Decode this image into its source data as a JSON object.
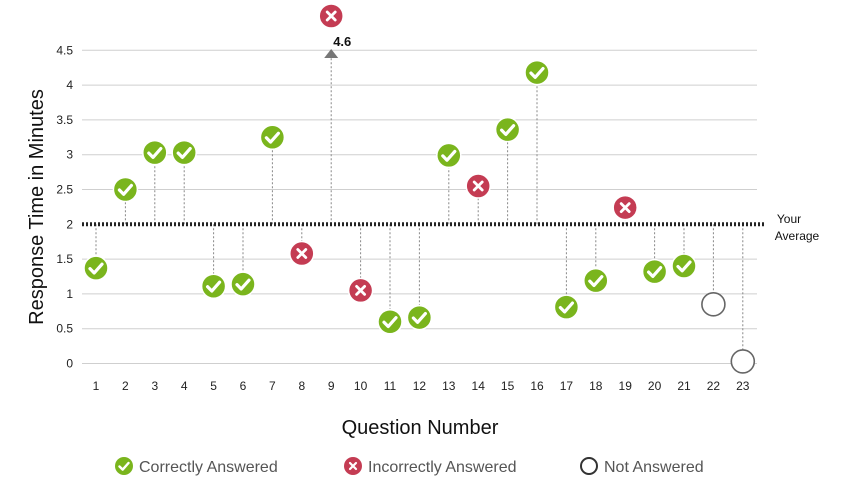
{
  "chart_data": {
    "type": "scatter",
    "ylabel": "Response Time in Minutes",
    "xlabel": "Question Number",
    "ylim": [
      0,
      4.5
    ],
    "y_ticks": [
      "0",
      "0.5",
      "1",
      "1.5",
      "2",
      "2.5",
      "3",
      "3.5",
      "4",
      "4.5"
    ],
    "grid": true,
    "average": {
      "value": 2.0,
      "label_line1": "Your",
      "label_line2": "Average"
    },
    "overflow_callout": {
      "question": 9,
      "text": "4.6"
    },
    "points": [
      {
        "q": 1,
        "y": 1.37,
        "status": "correct"
      },
      {
        "q": 2,
        "y": 2.5,
        "status": "correct"
      },
      {
        "q": 3,
        "y": 3.03,
        "status": "correct"
      },
      {
        "q": 4,
        "y": 3.03,
        "status": "correct"
      },
      {
        "q": 5,
        "y": 1.11,
        "status": "correct"
      },
      {
        "q": 6,
        "y": 1.14,
        "status": "correct"
      },
      {
        "q": 7,
        "y": 3.25,
        "status": "correct"
      },
      {
        "q": 8,
        "y": 1.58,
        "status": "incorrect"
      },
      {
        "q": 9,
        "y": 4.6,
        "status": "incorrect"
      },
      {
        "q": 10,
        "y": 1.05,
        "status": "incorrect"
      },
      {
        "q": 11,
        "y": 0.6,
        "status": "correct"
      },
      {
        "q": 12,
        "y": 0.66,
        "status": "correct"
      },
      {
        "q": 13,
        "y": 2.99,
        "status": "correct"
      },
      {
        "q": 14,
        "y": 2.55,
        "status": "incorrect"
      },
      {
        "q": 15,
        "y": 3.36,
        "status": "correct"
      },
      {
        "q": 16,
        "y": 4.18,
        "status": "correct"
      },
      {
        "q": 17,
        "y": 0.81,
        "status": "correct"
      },
      {
        "q": 18,
        "y": 1.19,
        "status": "correct"
      },
      {
        "q": 19,
        "y": 2.24,
        "status": "incorrect"
      },
      {
        "q": 20,
        "y": 1.32,
        "status": "correct"
      },
      {
        "q": 21,
        "y": 1.4,
        "status": "correct"
      },
      {
        "q": 22,
        "y": 0.85,
        "status": "not_answered"
      },
      {
        "q": 23,
        "y": 0.03,
        "status": "not_answered"
      }
    ],
    "legend": [
      {
        "status": "correct",
        "label": "Correctly Answered"
      },
      {
        "status": "incorrect",
        "label": "Incorrectly Answered"
      },
      {
        "status": "not_answered",
        "label": "Not Answered"
      }
    ]
  },
  "colors": {
    "correct": "#7ab51d",
    "incorrect": "#c43c53",
    "not_answered": "#666666",
    "grid": "#cfcfcf",
    "average_line": "#222222",
    "drop_line": "#888888"
  },
  "icons": {
    "correct": "check-circle-icon",
    "incorrect": "x-circle-icon",
    "not_answered": "empty-circle-icon"
  }
}
